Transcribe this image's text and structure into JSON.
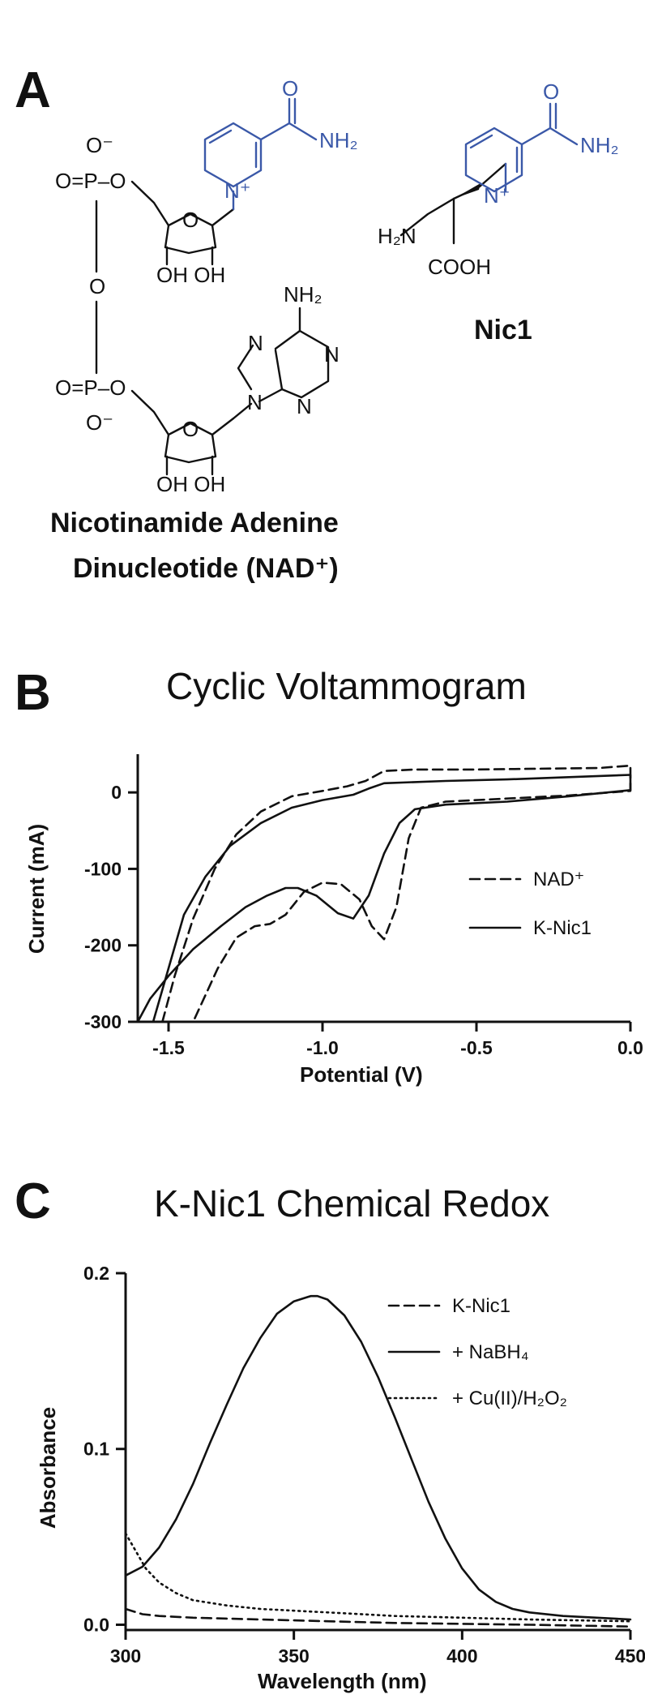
{
  "panel_a": {
    "letter": "A",
    "nad_caption_line1": "Nicotinamide Adenine",
    "nad_caption_line2": "Dinucleotide (NAD⁺)",
    "nic1_caption": "Nic1",
    "atoms": {
      "o_minus": "O⁻",
      "o_eq_p_o": "O=P–O",
      "o": "O",
      "nh2": "NH₂",
      "h2n": "H₂N",
      "n": "N",
      "n_plus": "N⁺",
      "oh_oh": "OH OH",
      "cooh": "COOH"
    }
  },
  "chart_data": [
    {
      "panel": "B",
      "type": "line",
      "title": "Cyclic Voltammogram",
      "xlabel": "Potential (V)",
      "ylabel": "Current (mA)",
      "xlim": [
        -1.6,
        0.0
      ],
      "ylim": [
        -300,
        50
      ],
      "xticks": [
        -1.5,
        -1.0,
        -0.5,
        0.0
      ],
      "xtick_labels": [
        "-1.5",
        "-1.0",
        "-0.5",
        "0.0"
      ],
      "yticks": [
        0,
        -100,
        -200,
        -300
      ],
      "ytick_labels": [
        "0",
        "-100",
        "-200",
        "-300"
      ],
      "legend": "right",
      "series": [
        {
          "name": "NAD⁺",
          "style": "dashed",
          "x": [
            -1.52,
            -1.48,
            -1.42,
            -1.35,
            -1.28,
            -1.2,
            -1.1,
            -1.0,
            -0.92,
            -0.86,
            -0.8,
            -0.7,
            -0.5,
            -0.3,
            -0.1,
            0.0,
            0.0,
            -0.2,
            -0.4,
            -0.6,
            -0.68,
            -0.72,
            -0.76,
            -0.8,
            -0.84,
            -0.88,
            -0.94,
            -1.0,
            -1.06,
            -1.12,
            -1.17,
            -1.22,
            -1.28,
            -1.34,
            -1.38,
            -1.42
          ],
          "y": [
            -300,
            -240,
            -165,
            -100,
            -55,
            -25,
            -5,
            2,
            8,
            15,
            28,
            30,
            30,
            31,
            32,
            35,
            2,
            -4,
            -8,
            -12,
            -20,
            -60,
            -150,
            -192,
            -175,
            -140,
            -120,
            -118,
            -130,
            -160,
            -172,
            -175,
            -190,
            -230,
            -265,
            -300
          ]
        },
        {
          "name": "K-Nic1",
          "style": "solid",
          "x": [
            -1.55,
            -1.5,
            -1.45,
            -1.38,
            -1.3,
            -1.2,
            -1.1,
            -1.0,
            -0.9,
            -0.85,
            -0.8,
            -0.6,
            -0.4,
            -0.2,
            0.0,
            0.0,
            -0.2,
            -0.4,
            -0.6,
            -0.7,
            -0.75,
            -0.8,
            -0.85,
            -0.9,
            -0.95,
            -1.02,
            -1.08,
            -1.12,
            -1.18,
            -1.25,
            -1.33,
            -1.42,
            -1.5,
            -1.56,
            -1.6
          ],
          "y": [
            -300,
            -230,
            -160,
            -110,
            -70,
            -40,
            -20,
            -10,
            -3,
            5,
            12,
            15,
            17,
            20,
            23,
            3,
            -5,
            -12,
            -16,
            -22,
            -40,
            -80,
            -135,
            -165,
            -158,
            -135,
            -125,
            -125,
            -135,
            -150,
            -175,
            -205,
            -240,
            -270,
            -300
          ]
        }
      ]
    },
    {
      "panel": "C",
      "type": "line",
      "title": "K-Nic1 Chemical Redox",
      "xlabel": "Wavelength (nm)",
      "ylabel": "Absorbance",
      "xlim": [
        300,
        450
      ],
      "ylim": [
        -0.003,
        0.2
      ],
      "xticks": [
        300,
        350,
        400,
        450
      ],
      "xtick_labels": [
        "300",
        "350",
        "400",
        "450"
      ],
      "yticks": [
        0.0,
        0.1,
        0.2
      ],
      "ytick_labels": [
        "0.0",
        "0.1",
        "0.2"
      ],
      "legend": "top-right",
      "series": [
        {
          "name": "K-Nic1",
          "style": "dashed",
          "x": [
            300,
            305,
            310,
            320,
            340,
            360,
            380,
            400,
            420,
            450
          ],
          "y": [
            0.009,
            0.006,
            0.005,
            0.004,
            0.003,
            0.002,
            0.001,
            0.0005,
            0.0,
            -0.001
          ]
        },
        {
          "name": "+ NaBH₄",
          "style": "solid",
          "x": [
            300,
            305,
            310,
            315,
            320,
            325,
            330,
            335,
            340,
            345,
            350,
            355,
            357,
            360,
            365,
            370,
            375,
            380,
            385,
            390,
            395,
            400,
            405,
            410,
            415,
            420,
            430,
            440,
            450
          ],
          "y": [
            0.028,
            0.033,
            0.044,
            0.06,
            0.08,
            0.103,
            0.125,
            0.146,
            0.163,
            0.177,
            0.184,
            0.187,
            0.187,
            0.185,
            0.176,
            0.161,
            0.141,
            0.118,
            0.094,
            0.07,
            0.049,
            0.032,
            0.02,
            0.013,
            0.009,
            0.007,
            0.005,
            0.004,
            0.003
          ]
        },
        {
          "name": "+ Cu(II)/H₂O₂",
          "style": "dotted",
          "x": [
            300,
            303,
            306,
            310,
            315,
            320,
            330,
            340,
            360,
            380,
            400,
            420,
            450
          ],
          "y": [
            0.052,
            0.042,
            0.032,
            0.024,
            0.018,
            0.014,
            0.011,
            0.009,
            0.007,
            0.005,
            0.004,
            0.003,
            0.002
          ]
        }
      ]
    }
  ]
}
